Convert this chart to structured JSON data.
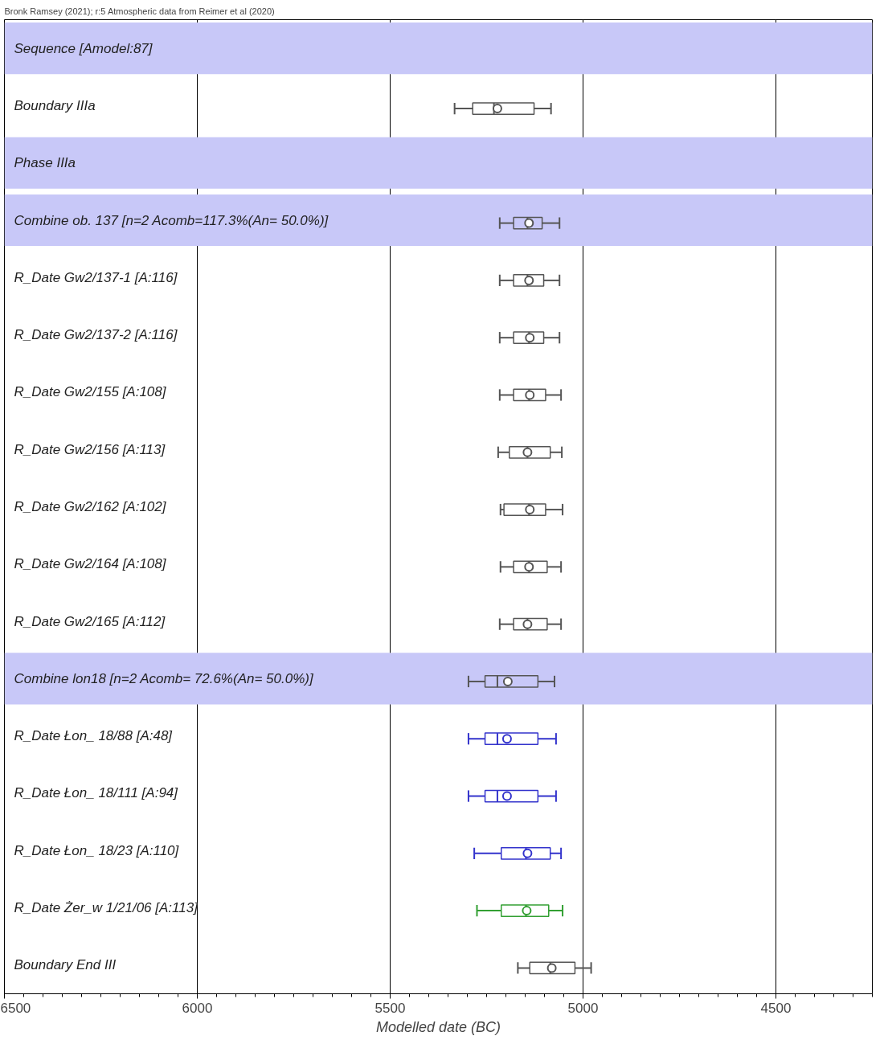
{
  "chart_data": {
    "type": "box",
    "orientation": "horizontal",
    "xlabel": "Modelled date (BC)",
    "annotations": [
      "Bronk Ramsey (2021); r:5 Atmospheric data from Reimer et al (2020)"
    ],
    "categories": [
      "Sequence [Amodel:87]",
      "Boundary IIIa",
      "Phase IIIa",
      "Combine ob. 137 [n=2 Acomb=117.3%(An= 50.0%)]",
      "R_Date Gw2/137-1 [A:116]",
      "R_Date Gw2/137-2 [A:116]",
      "R_Date Gw2/155 [A:108]",
      "R_Date Gw2/156 [A:113]",
      "R_Date Gw2/162 [A:102]",
      "R_Date Gw2/164 [A:108]",
      "R_Date Gw2/165 [A:112]",
      "Combine lon18 [n=2 Acomb= 72.6%(An= 50.0%)]",
      "R_Date Łon_ 18/88 [A:48]",
      "R_Date Łon_ 18/111 [A:94]",
      "R_Date Łon_ 18/23 [A:110]",
      "R_Date Żer_w 1/21/06 [A:113]",
      "Boundary End III"
    ],
    "boxes": [
      null,
      {
        "low": 5333,
        "q1": 5286,
        "median": 5231,
        "q3": 5127,
        "high": 5083,
        "mean": 5222
      },
      null,
      {
        "low": 5216,
        "q1": 5180,
        "median": 5144,
        "q3": 5106,
        "high": 5061,
        "mean": 5140
      },
      {
        "low": 5216,
        "q1": 5180,
        "median": 5144,
        "q3": 5102,
        "high": 5061,
        "mean": 5140
      },
      {
        "low": 5216,
        "q1": 5180,
        "median": 5140,
        "q3": 5102,
        "high": 5061,
        "mean": 5138
      },
      {
        "low": 5216,
        "q1": 5180,
        "median": 5140,
        "q3": 5097,
        "high": 5057,
        "mean": 5138
      },
      {
        "low": 5220,
        "q1": 5191,
        "median": 5144,
        "q3": 5085,
        "high": 5055,
        "mean": 5144
      },
      {
        "low": 5214,
        "q1": 5205,
        "median": 5140,
        "q3": 5097,
        "high": 5053,
        "mean": 5138
      },
      {
        "low": 5214,
        "q1": 5180,
        "median": 5140,
        "q3": 5093,
        "high": 5057,
        "mean": 5140
      },
      {
        "low": 5216,
        "q1": 5180,
        "median": 5144,
        "q3": 5093,
        "high": 5057,
        "mean": 5144
      },
      {
        "low": 5297,
        "q1": 5254,
        "median": 5222,
        "q3": 5117,
        "high": 5074,
        "mean": 5195
      },
      {
        "low": 5297,
        "q1": 5254,
        "median": 5222,
        "q3": 5117,
        "high": 5070,
        "mean": 5197
      },
      {
        "low": 5297,
        "q1": 5254,
        "median": 5222,
        "q3": 5117,
        "high": 5070,
        "mean": 5197
      },
      {
        "low": 5282,
        "q1": 5212,
        "median": 5148,
        "q3": 5085,
        "high": 5057,
        "mean": 5144
      },
      {
        "low": 5275,
        "q1": 5212,
        "median": 5148,
        "q3": 5089,
        "high": 5053,
        "mean": 5146
      },
      {
        "low": 5169,
        "q1": 5138,
        "median": 5085,
        "q3": 5021,
        "high": 4979,
        "mean": 5081
      }
    ],
    "colors": [
      "#555555",
      "#555555",
      "#555555",
      "#555555",
      "#555555",
      "#555555",
      "#555555",
      "#555555",
      "#555555",
      "#555555",
      "#555555",
      "#555555",
      "#3333cc",
      "#3333cc",
      "#3333cc",
      "#33a033",
      "#555555"
    ],
    "bands": [
      {
        "axis": "y",
        "from": "Sequence [Amodel:87]",
        "to": "Sequence [Amodel:87]",
        "color": "#c8c8f8"
      },
      {
        "axis": "y",
        "from": "Phase IIIa",
        "to": "Phase IIIa",
        "color": "#c8c8f8"
      },
      {
        "axis": "y",
        "from": "Combine ob. 137 [n=2 Acomb=117.3%(An= 50.0%)]",
        "to": "Combine ob. 137 [n=2 Acomb=117.3%(An= 50.0%)]",
        "color": "#c8c8f8"
      },
      {
        "axis": "y",
        "from": "Combine lon18 [n=2 Acomb= 72.6%(An= 50.0%)]",
        "to": "Combine lon18 [n=2 Acomb= 72.6%(An= 50.0%)]",
        "color": "#c8c8f8"
      }
    ],
    "xlim": [
      6500,
      4250
    ],
    "xticks": [
      6500,
      6000,
      5500,
      5000,
      4500
    ],
    "grid": "x",
    "tick_labels": "x"
  }
}
